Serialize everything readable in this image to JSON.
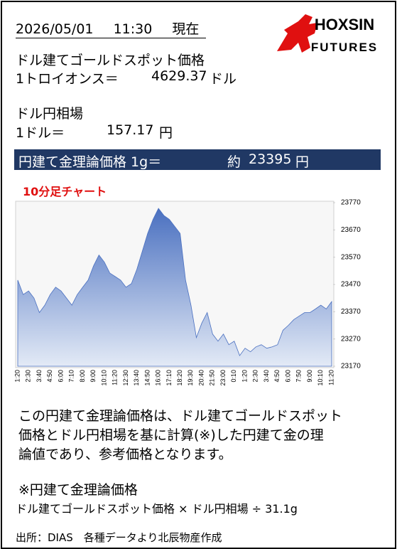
{
  "header": {
    "date": "2026/05/01",
    "time": "11:30",
    "status": "現在"
  },
  "logo": {
    "name": "HOXSIN",
    "sub": "FUTURES"
  },
  "gold": {
    "label": "ドル建てゴールドスポット価格",
    "unit_label": "1トロイオンス＝",
    "price": "4629.37",
    "currency": "ドル"
  },
  "fx": {
    "label": "ドル円相場",
    "unit_label": "1ドル＝",
    "rate": "157.17",
    "currency": "円"
  },
  "theory": {
    "label": "円建て金理論価格 1g＝",
    "prefix": "約",
    "price": "23395",
    "currency": "円"
  },
  "chart_data": {
    "type": "area",
    "title": "10分足チャート",
    "categories": [
      "1:20",
      null,
      "2:30",
      null,
      "3:40",
      null,
      "4:50",
      null,
      "6:00",
      null,
      "7:10",
      null,
      "8:00",
      null,
      "9:00",
      null,
      "10:10",
      null,
      "11:20",
      null,
      "12:30",
      null,
      "13:40",
      null,
      "14:50",
      null,
      "16:00",
      null,
      "17:10",
      null,
      "18:20",
      null,
      "19:30",
      null,
      "20:40",
      null,
      "21:50",
      null,
      "23:00",
      null,
      "0:10",
      null,
      "1:20",
      null,
      "2:30",
      null,
      "3:40",
      null,
      "4:50",
      null,
      "6:00",
      null,
      "7:50",
      null,
      "9:00",
      null,
      "10:10",
      null,
      "11:20"
    ],
    "values": [
      23486,
      23433,
      23446,
      23420,
      23367,
      23394,
      23433,
      23460,
      23446,
      23420,
      23394,
      23433,
      23460,
      23486,
      23538,
      23578,
      23552,
      23512,
      23499,
      23486,
      23460,
      23473,
      23525,
      23591,
      23657,
      23709,
      23749,
      23723,
      23709,
      23683,
      23657,
      23486,
      23394,
      23275,
      23328,
      23367,
      23288,
      23262,
      23288,
      23249,
      23262,
      23209,
      23236,
      23223,
      23241,
      23249,
      23236,
      23241,
      23249,
      23302,
      23320,
      23341,
      23354,
      23367,
      23367,
      23380,
      23394,
      23380,
      23407
    ],
    "color": "#4a70c0",
    "ylim": [
      23170,
      23770
    ],
    "yticks": [
      23170,
      23270,
      23370,
      23470,
      23570,
      23670,
      23770
    ],
    "grid": false
  },
  "note": {
    "lines": [
      "この円建て金理論価格は、ドル建てゴールドスポット",
      "価格とドル円相場を基に計算(※)した円建て金の理",
      "論値であり、参考価格となります。"
    ]
  },
  "formula": {
    "title": "※円建て金理論価格",
    "text": "ドル建てゴールドスポット価格 × ドル円相場 ÷ 31.1g"
  },
  "source": "出所：DIAS　各種データより北辰物産作成"
}
